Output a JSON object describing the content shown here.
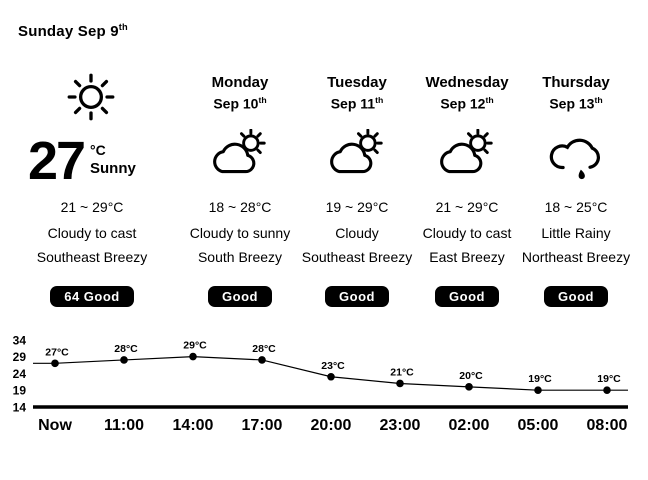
{
  "header": {
    "title": "Sunday Sep 9",
    "ordinal": "th"
  },
  "current": {
    "icon": "sun-icon",
    "temperature": "27",
    "unit": "°C",
    "condition": "Sunny",
    "range": "21 ~ 29°C",
    "sky": "Cloudy to cast",
    "wind": "Southeast Breezy",
    "aqi_label": "64 Good"
  },
  "forecast": [
    {
      "day": "Monday",
      "date": "Sep 10",
      "ordinal": "th",
      "icon": "cloud-sun-icon",
      "range": "18 ~ 28°C",
      "sky": "Cloudy to sunny",
      "wind": "South Breezy",
      "aqi_label": "Good"
    },
    {
      "day": "Tuesday",
      "date": "Sep 11",
      "ordinal": "th",
      "icon": "cloud-sun-icon",
      "range": "19 ~ 29°C",
      "sky": "Cloudy",
      "wind": "Southeast Breezy",
      "aqi_label": "Good"
    },
    {
      "day": "Wednesday",
      "date": "Sep 12",
      "ordinal": "th",
      "icon": "cloud-sun-icon",
      "range": "21 ~ 29°C",
      "sky": "Cloudy to cast",
      "wind": "East Breezy",
      "aqi_label": "Good"
    },
    {
      "day": "Thursday",
      "date": "Sep 13",
      "ordinal": "th",
      "icon": "rain-cloud-icon",
      "range": "18 ~ 25°C",
      "sky": "Little Rainy",
      "wind": "Northeast Breezy",
      "aqi_label": "Good"
    }
  ],
  "chart_data": {
    "type": "line",
    "x": [
      "Now",
      "11:00",
      "14:00",
      "17:00",
      "20:00",
      "23:00",
      "02:00",
      "05:00",
      "08:00"
    ],
    "values": [
      27,
      28,
      29,
      28,
      23,
      21,
      20,
      19,
      19
    ],
    "point_labels": [
      "27°C",
      "28°C",
      "29°C",
      "28°C",
      "23°C",
      "21°C",
      "20°C",
      "19°C",
      "19°C"
    ],
    "yticks": [
      34,
      29,
      24,
      19,
      14
    ],
    "ylim": [
      14,
      34
    ],
    "grid": false,
    "legend": false,
    "title": "",
    "xlabel": "",
    "ylabel": ""
  },
  "colors": {
    "foreground": "#000000",
    "background": "#ffffff",
    "badge_bg": "#000000",
    "badge_fg": "#ffffff"
  }
}
